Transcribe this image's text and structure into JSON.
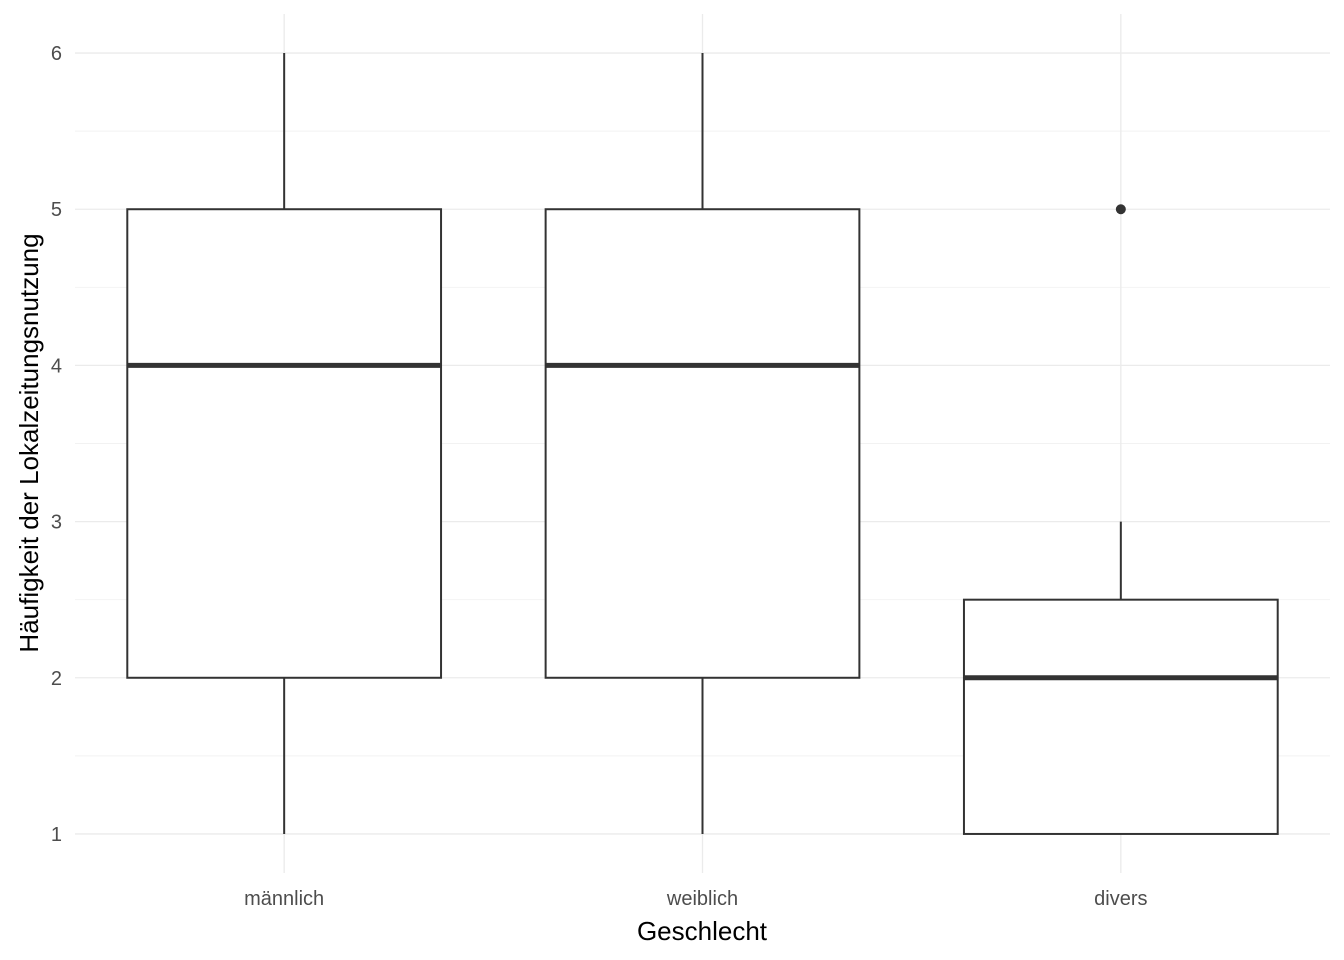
{
  "chart_data": {
    "type": "boxplot",
    "title": "",
    "xlabel": "Geschlecht",
    "ylabel": "Häufigkeit der Lokalzeitungsnutzung",
    "ylim": [
      0.75,
      6.25
    ],
    "y_ticks": [
      "1",
      "2",
      "3",
      "4",
      "5",
      "6"
    ],
    "y_tick_values": [
      1,
      2,
      3,
      4,
      5,
      6
    ],
    "grid": true,
    "categories": [
      "männlich",
      "weiblich",
      "divers"
    ],
    "boxes": [
      {
        "category": "männlich",
        "whisker_low": 1,
        "q1": 2,
        "median": 4,
        "q3": 5,
        "whisker_high": 6,
        "outliers": []
      },
      {
        "category": "weiblich",
        "whisker_low": 1,
        "q1": 2,
        "median": 4,
        "q3": 5,
        "whisker_high": 6,
        "outliers": []
      },
      {
        "category": "divers",
        "whisker_low": 1,
        "q1": 1,
        "median": 2,
        "q3": 2.5,
        "whisker_high": 3,
        "outliers": [
          5
        ]
      }
    ],
    "colors": {
      "box_stroke": "#333333",
      "box_fill": "#ffffff",
      "grid": "#ebebeb"
    }
  }
}
